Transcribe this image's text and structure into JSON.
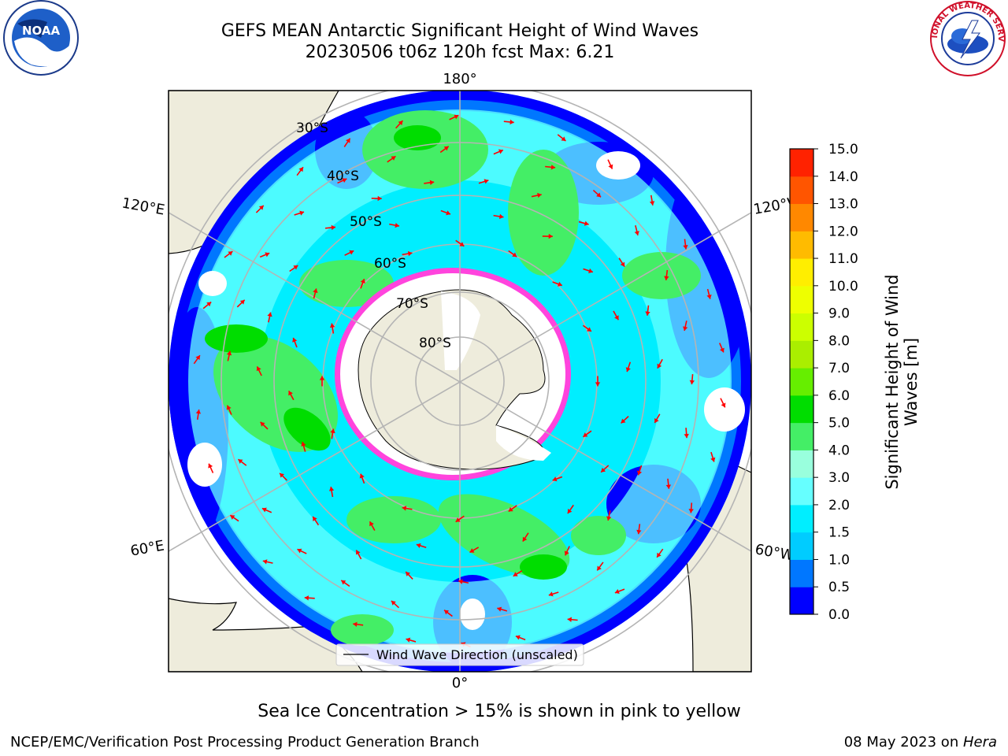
{
  "title": {
    "line1": "GEFS MEAN Antarctic Significant Height of Wind Waves",
    "line2": "20230506 t06z 120h fcst   Max: 6.21"
  },
  "logos": {
    "left": {
      "icon": "noaa-logo-icon",
      "text": "NOAA"
    },
    "right": {
      "icon": "nws-logo-icon",
      "text": "NATIONAL WEATHER SERVICE"
    }
  },
  "map": {
    "projection": "south-polar-stereographic",
    "longitude_labels": {
      "top": "180°",
      "bottom": "0°",
      "upper_left": "120°E",
      "lower_left": "60°E",
      "upper_right": "120°W",
      "lower_right": "60°W"
    },
    "latitude_labels": [
      "30°S",
      "40°S",
      "50°S",
      "60°S",
      "70°S",
      "80°S"
    ],
    "legend_entry": "Wind Wave Direction (unscaled)",
    "colors": {
      "land": "#eeecdc",
      "arrows": "#ff0000",
      "grid": "#b4b4b4",
      "ice_edge": "#ff44dd",
      "antarctica_ice": "#ffffff"
    }
  },
  "colorbar": {
    "label": "Significant Height of Wind Waves [m]",
    "ticks": [
      "0.0",
      "0.5",
      "1.0",
      "1.5",
      "2.0",
      "3.0",
      "4.0",
      "5.0",
      "6.0",
      "7.0",
      "8.0",
      "9.0",
      "10.0",
      "11.0",
      "12.0",
      "13.0",
      "14.0",
      "15.0"
    ],
    "colors": [
      "#0000ff",
      "#0077ff",
      "#00ccff",
      "#00eeff",
      "#66ffff",
      "#99ffdd",
      "#44ee66",
      "#00dd00",
      "#66ee00",
      "#aaee00",
      "#ccff00",
      "#eeff00",
      "#ffee00",
      "#ffbb00",
      "#ff8800",
      "#ff5500",
      "#ff2200"
    ]
  },
  "chart_data": {
    "type": "heatmap",
    "title": "GEFS MEAN Antarctic Significant Height of Wind Waves",
    "subtitle": "20230506 t06z 120h fcst   Max: 6.21",
    "variable": "Significant Height of Wind Waves [m]",
    "max_value": 6.21,
    "vmin": 0.0,
    "vmax": 15.0,
    "levels": [
      0.0,
      0.5,
      1.0,
      1.5,
      2.0,
      3.0,
      4.0,
      5.0,
      6.0,
      7.0,
      8.0,
      9.0,
      10.0,
      11.0,
      12.0,
      13.0,
      14.0,
      15.0
    ],
    "legend": [
      "Wind Wave Direction (unscaled)"
    ]
  },
  "footnote": "Sea Ice Concentration > 15% is shown in pink to yellow",
  "footer": {
    "left": "NCEP/EMC/Verification Post Processing Product Generation Branch",
    "right_date": "08 May 2023 on ",
    "right_host": "Hera"
  }
}
